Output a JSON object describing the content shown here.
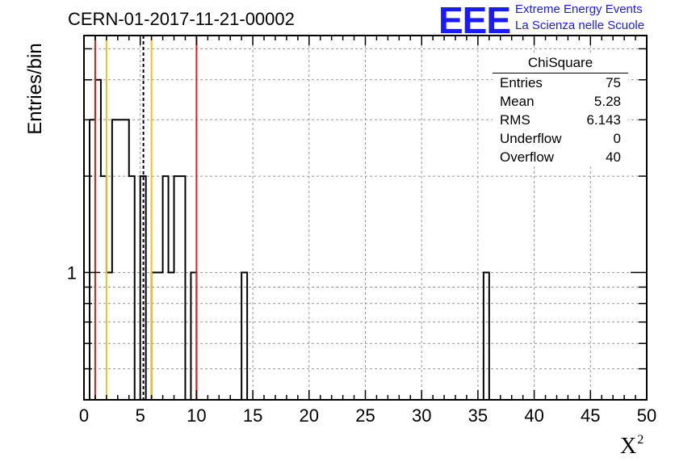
{
  "header": {
    "plot_title": "CERN-01-2017-11-21-00002",
    "logo_text": "EEE",
    "logo_line1": "Extreme Energy Events",
    "logo_line2": "La Scienza nelle Scuole"
  },
  "stats": {
    "title": "ChiSquare",
    "rows": [
      {
        "label": "Entries",
        "value": "75"
      },
      {
        "label": "Mean",
        "value": "5.28"
      },
      {
        "label": "RMS",
        "value": "6.143"
      },
      {
        "label": "Underflow",
        "value": "0"
      },
      {
        "label": "Overflow",
        "value": "40"
      }
    ]
  },
  "colors": {
    "red_line": "#dd2222",
    "yellow_line": "#f0c020",
    "histogram": "#000000",
    "grid": "#999999",
    "logo": "#1a1aff"
  },
  "chart_data": {
    "type": "bar",
    "histogram_style": "step",
    "ylabel": "Entries/bin",
    "xlabel": "X",
    "xlabel_superscript": "2",
    "log_y": true,
    "xlim": [
      0,
      50
    ],
    "ylim": [
      0.4,
      5.5
    ],
    "x_ticks": [
      "0",
      "5",
      "10",
      "15",
      "20",
      "25",
      "30",
      "35",
      "40",
      "45",
      "50"
    ],
    "y_ticks": [
      "1"
    ],
    "grid": true,
    "bin_width": 0.5,
    "bins": [
      {
        "x": 0.5,
        "y": 3
      },
      {
        "x": 1.0,
        "y": 4
      },
      {
        "x": 1.5,
        "y": 2
      },
      {
        "x": 2.0,
        "y": 1
      },
      {
        "x": 2.5,
        "y": 3
      },
      {
        "x": 3.0,
        "y": 3
      },
      {
        "x": 3.5,
        "y": 3
      },
      {
        "x": 4.0,
        "y": 2
      },
      {
        "x": 5.0,
        "y": 2
      },
      {
        "x": 6.0,
        "y": 1
      },
      {
        "x": 6.5,
        "y": 1
      },
      {
        "x": 7.0,
        "y": 2
      },
      {
        "x": 7.5,
        "y": 1
      },
      {
        "x": 8.0,
        "y": 2
      },
      {
        "x": 8.5,
        "y": 2
      },
      {
        "x": 9.5,
        "y": 1
      },
      {
        "x": 14.0,
        "y": 1
      },
      {
        "x": 35.5,
        "y": 1
      }
    ],
    "vertical_lines": [
      {
        "x": 1.0,
        "color": "red",
        "style": "solid"
      },
      {
        "x": 2.0,
        "color": "yellow",
        "style": "solid"
      },
      {
        "x": 5.28,
        "color": "black",
        "style": "dashed"
      },
      {
        "x": 6.0,
        "color": "yellow",
        "style": "solid"
      },
      {
        "x": 10.0,
        "color": "red",
        "style": "solid"
      }
    ],
    "stats_box_position": "top-right"
  }
}
